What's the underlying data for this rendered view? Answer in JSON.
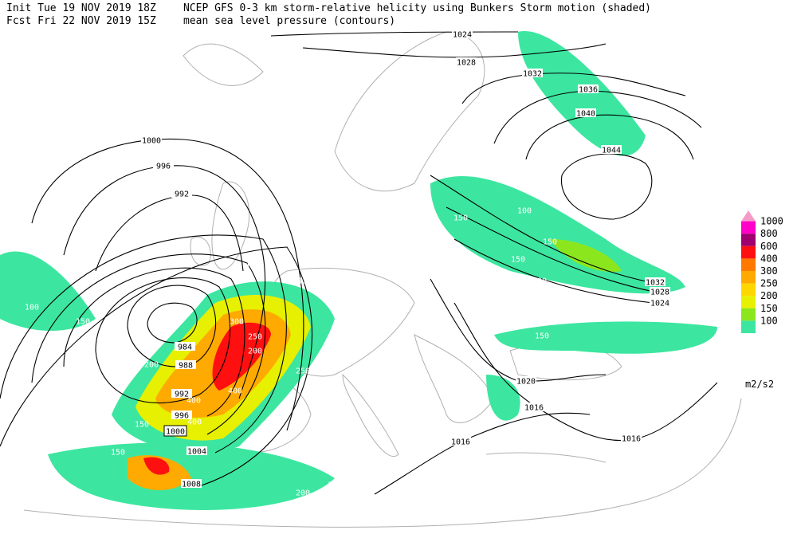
{
  "header": {
    "init": "Init  Tue 19 NOV 2019 18Z",
    "forecast": "Fcst Fri 22 NOV 2019 15Z",
    "title": "NCEP GFS 0-3 km storm-relative helicity using Bunkers Storm motion (shaded)",
    "subtitle": "mean sea level pressure (contours)"
  },
  "legend": {
    "unit": "m2/s2",
    "levels": [
      {
        "label": "1000",
        "color": "#f59ac8"
      },
      {
        "label": "800",
        "color": "#ff00c8"
      },
      {
        "label": "600",
        "color": "#a0006e"
      },
      {
        "label": "400",
        "color": "#ff1010"
      },
      {
        "label": "300",
        "color": "#ff7800"
      },
      {
        "label": "250",
        "color": "#ffaa00"
      },
      {
        "label": "200",
        "color": "#ffd700"
      },
      {
        "label": "150",
        "color": "#e6f000"
      },
      {
        "label": "100",
        "color": "#8ce61e"
      },
      {
        "label": "",
        "color": "#3ce6a0"
      }
    ]
  },
  "pressure_labels": [
    "1024",
    "1028",
    "1032",
    "1036",
    "1040",
    "1044",
    "1000",
    "996",
    "992",
    "984",
    "988",
    "992",
    "996",
    "1000",
    "1004",
    "1008",
    "1016",
    "1016",
    "1020",
    "1024",
    "1028",
    "1032",
    "1016"
  ],
  "helicity_labels": [
    "150",
    "150",
    "150",
    "150",
    "150",
    "150",
    "150",
    "150",
    "150",
    "150",
    "150",
    "150",
    "100",
    "100",
    "100",
    "100",
    "100",
    "100",
    "100",
    "100",
    "200",
    "200",
    "200",
    "250",
    "250",
    "300",
    "400",
    "400",
    "400"
  ]
}
